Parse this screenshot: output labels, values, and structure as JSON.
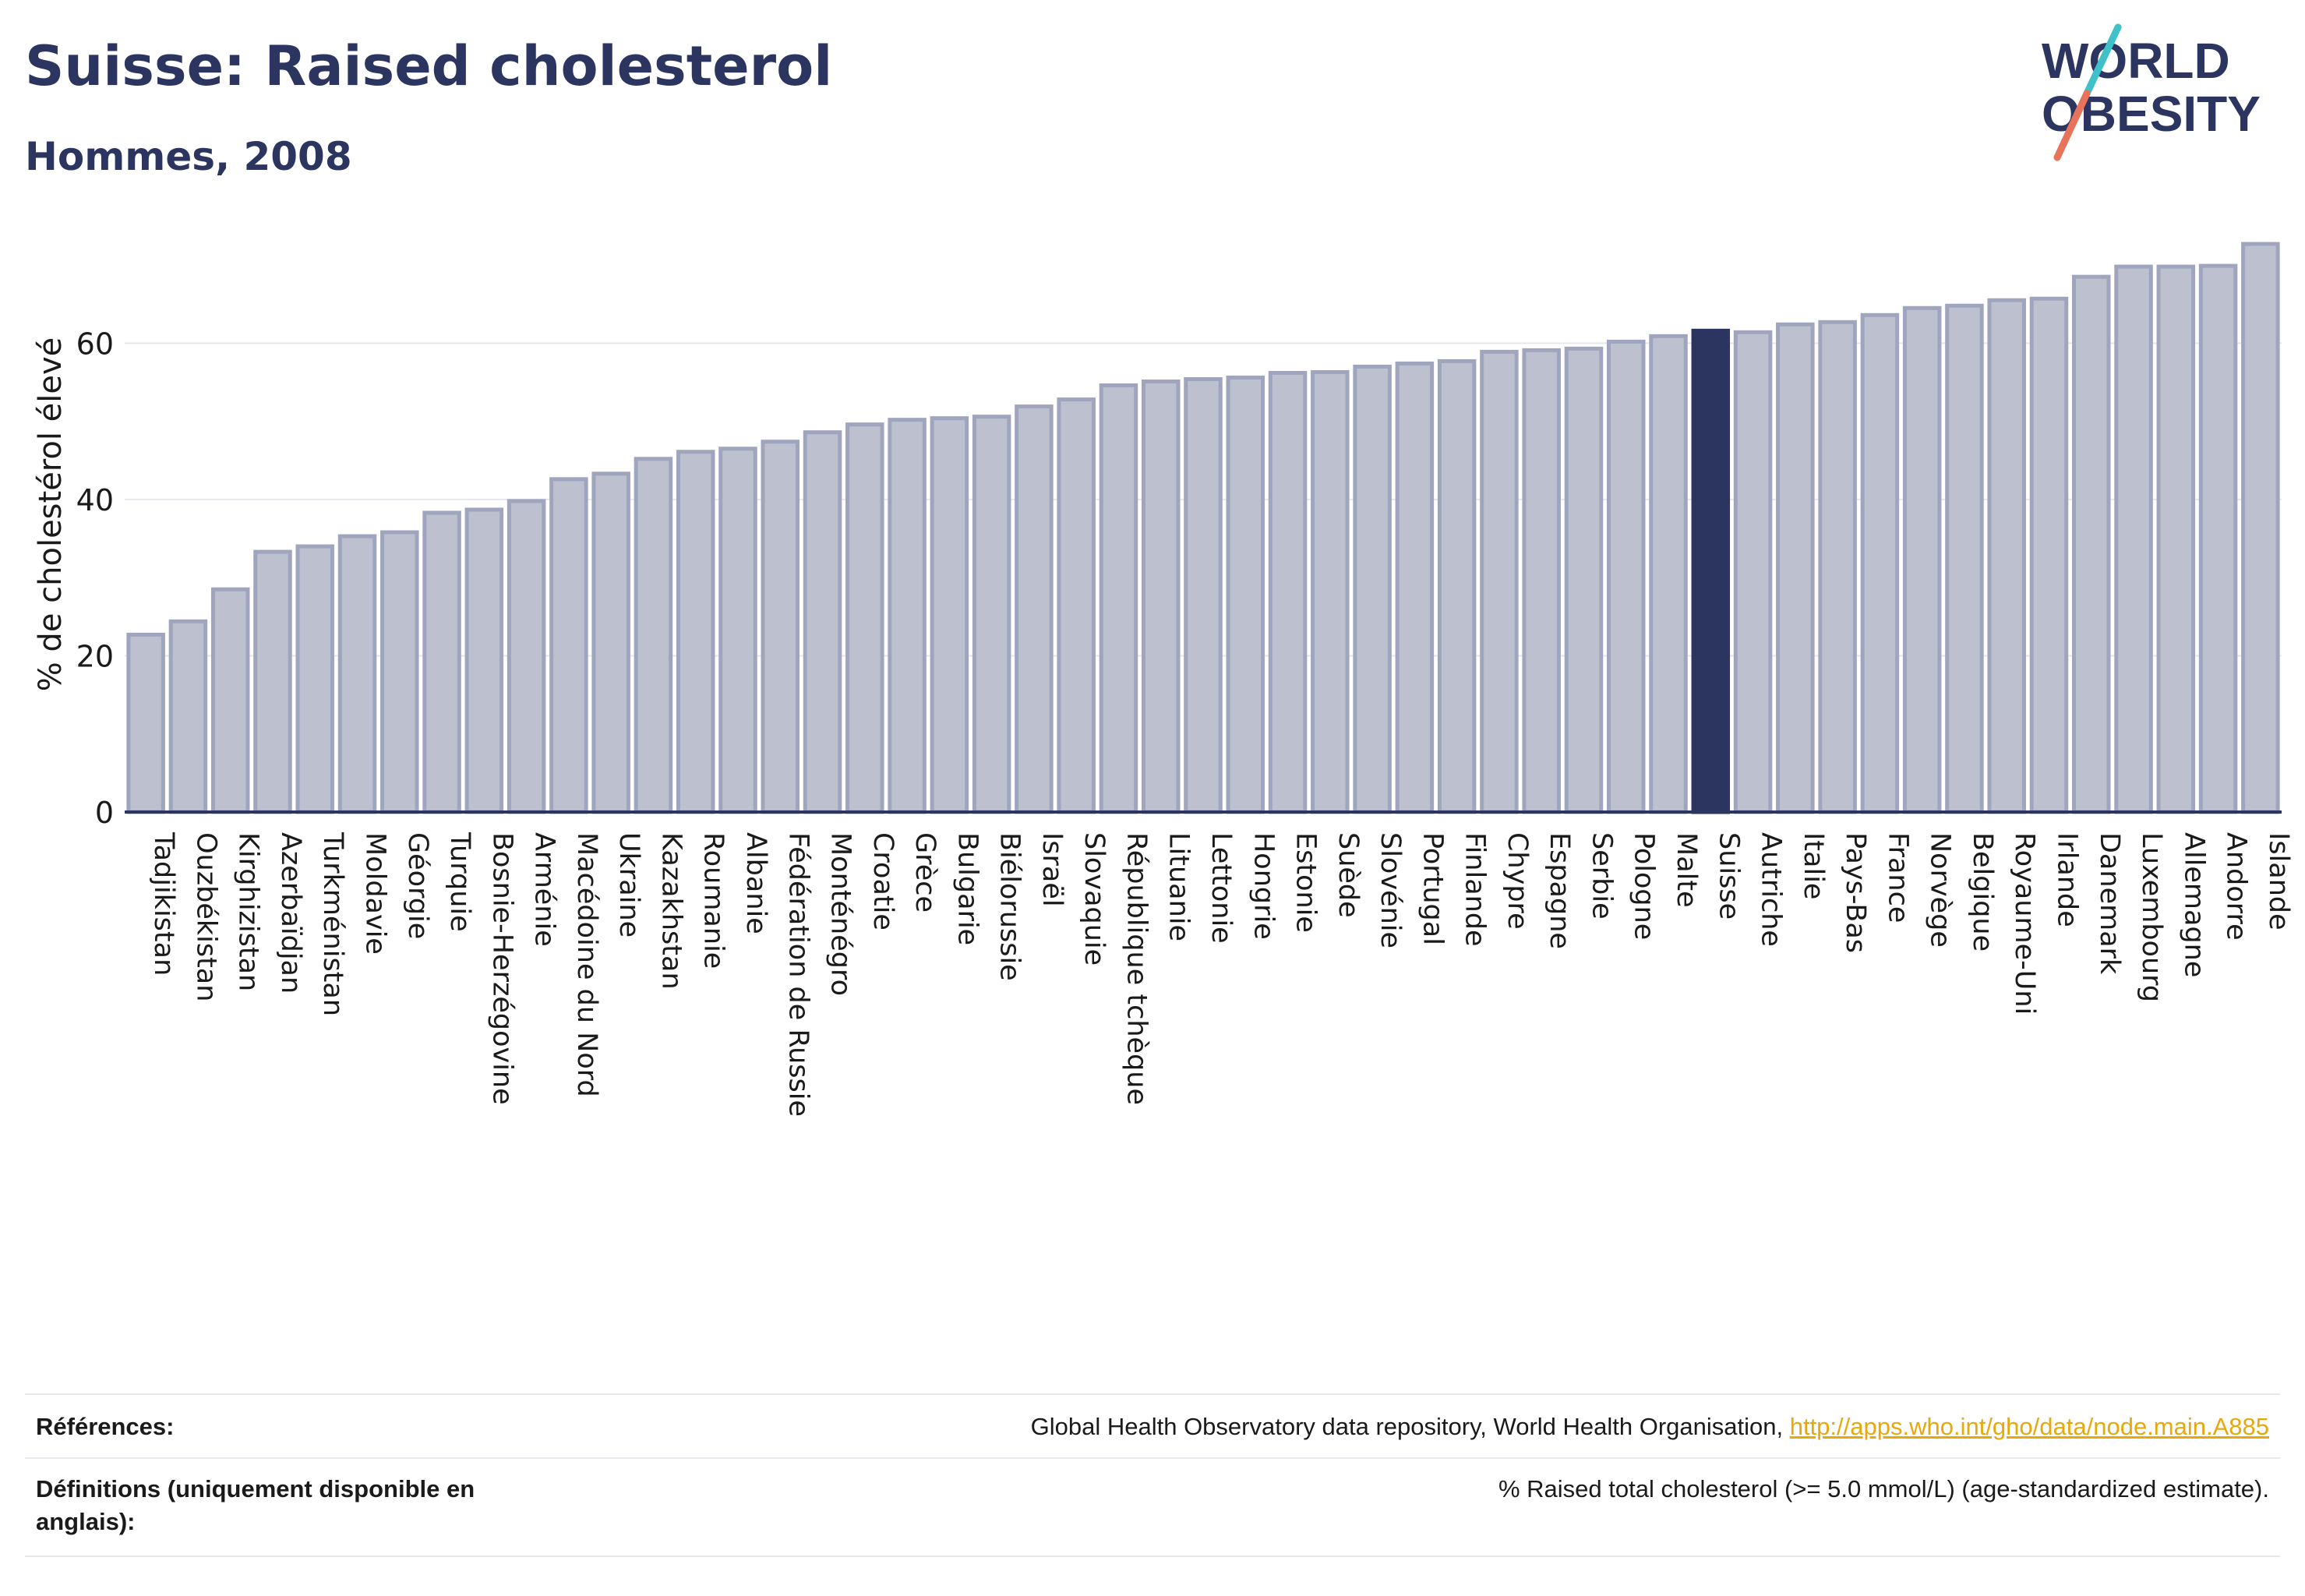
{
  "header": {
    "title": "Suisse: Raised cholesterol",
    "subtitle": "Hommes, 2008"
  },
  "logo": {
    "line1": "WORLD",
    "line2": "OBESITY",
    "colors": {
      "text": "#2b3560",
      "slash_top": "#3fc1c9",
      "slash_bottom": "#e8735a"
    }
  },
  "chart_data": {
    "type": "bar",
    "ylabel": "% de cholestérol élevé",
    "ylim": [
      0,
      74
    ],
    "yticks": [
      0,
      20,
      40,
      60
    ],
    "grid": true,
    "highlight": "Suisse",
    "colors": {
      "bar": "#bcc0cf",
      "bar_edge": "#9fa5bc",
      "highlight": "#2b3560",
      "grid": "#e6e6ec"
    },
    "categories": [
      "Tadjikistan",
      "Ouzbékistan",
      "Kirghizistan",
      "Azerbaïdjan",
      "Turkménistan",
      "Moldavie",
      "Géorgie",
      "Turquie",
      "Bosnie-Herzégovine",
      "Arménie",
      "Macédoine du Nord",
      "Ukraine",
      "Kazakhstan",
      "Roumanie",
      "Albanie",
      "Fédération de Russie",
      "Monténégro",
      "Croatie",
      "Grèce",
      "Bulgarie",
      "Biélorussie",
      "Israël",
      "Slovaquie",
      "République tchèque",
      "Lituanie",
      "Lettonie",
      "Hongrie",
      "Estonie",
      "Suède",
      "Slovénie",
      "Portugal",
      "Finlande",
      "Chypre",
      "Espagne",
      "Serbie",
      "Pologne",
      "Malte",
      "Suisse",
      "Autriche",
      "Italie",
      "Pays-Bas",
      "France",
      "Norvège",
      "Belgique",
      "Royaume-Uni",
      "Irlande",
      "Danemark",
      "Luxembourg",
      "Allemagne",
      "Andorre",
      "Islande"
    ],
    "values": [
      22.7,
      24.4,
      28.5,
      33.3,
      34.0,
      35.3,
      35.8,
      38.3,
      38.7,
      39.8,
      42.6,
      43.3,
      45.2,
      46.1,
      46.5,
      47.4,
      48.6,
      49.6,
      50.2,
      50.4,
      50.6,
      51.9,
      52.8,
      54.6,
      55.1,
      55.4,
      55.6,
      56.2,
      56.3,
      57.0,
      57.4,
      57.7,
      58.9,
      59.1,
      59.3,
      60.2,
      60.9,
      61.6,
      61.4,
      62.4,
      62.7,
      63.6,
      64.5,
      64.8,
      65.5,
      65.7,
      68.5,
      69.8,
      69.8,
      69.9,
      72.7
    ]
  },
  "footer": {
    "references_label": "Références:",
    "references_text": "Global Health Observatory data repository, World Health Organisation, ",
    "references_link": "http://apps.who.int/gho/data/node.main.A885",
    "definitions_label": "Définitions (uniquement disponible en anglais):",
    "definitions_text": "% Raised total cholesterol (>= 5.0 mmol/L) (age-standardized estimate)."
  }
}
